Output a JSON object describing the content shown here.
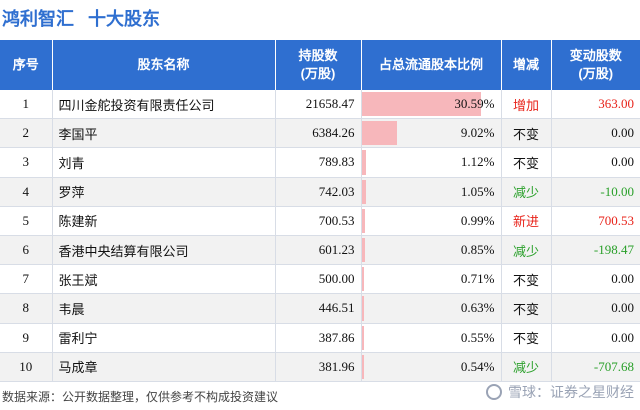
{
  "title": {
    "company": "鸿利智汇",
    "subtitle": "十大股东"
  },
  "headers": {
    "rank": "序号",
    "name": "股东名称",
    "shares_l1": "持股数",
    "shares_l2": "(万股)",
    "ratio": "占总流通股本比例",
    "change": "增减",
    "delta_l1": "变动股数",
    "delta_l2": "(万股)"
  },
  "rows": [
    {
      "rank": "1",
      "name": "四川金舵投资有限责任公司",
      "shares": "21658.47",
      "ratio": "30.59%",
      "ratio_value": 30.59,
      "change": "增加",
      "change_type": "up",
      "delta": "363.00",
      "delta_type": "up"
    },
    {
      "rank": "2",
      "name": "李国平",
      "shares": "6384.26",
      "ratio": "9.02%",
      "ratio_value": 9.02,
      "change": "不变",
      "change_type": "same",
      "delta": "0.00",
      "delta_type": "same"
    },
    {
      "rank": "3",
      "name": "刘青",
      "shares": "789.83",
      "ratio": "1.12%",
      "ratio_value": 1.12,
      "change": "不变",
      "change_type": "same",
      "delta": "0.00",
      "delta_type": "same"
    },
    {
      "rank": "4",
      "name": "罗萍",
      "shares": "742.03",
      "ratio": "1.05%",
      "ratio_value": 1.05,
      "change": "减少",
      "change_type": "down",
      "delta": "-10.00",
      "delta_type": "down"
    },
    {
      "rank": "5",
      "name": "陈建新",
      "shares": "700.53",
      "ratio": "0.99%",
      "ratio_value": 0.99,
      "change": "新进",
      "change_type": "up",
      "delta": "700.53",
      "delta_type": "up"
    },
    {
      "rank": "6",
      "name": "香港中央结算有限公司",
      "shares": "601.23",
      "ratio": "0.85%",
      "ratio_value": 0.85,
      "change": "减少",
      "change_type": "down",
      "delta": "-198.47",
      "delta_type": "down"
    },
    {
      "rank": "7",
      "name": "张王斌",
      "shares": "500.00",
      "ratio": "0.71%",
      "ratio_value": 0.71,
      "change": "不变",
      "change_type": "same",
      "delta": "0.00",
      "delta_type": "same"
    },
    {
      "rank": "8",
      "name": "韦晨",
      "shares": "446.51",
      "ratio": "0.63%",
      "ratio_value": 0.63,
      "change": "不变",
      "change_type": "same",
      "delta": "0.00",
      "delta_type": "same"
    },
    {
      "rank": "9",
      "name": "雷利宁",
      "shares": "387.86",
      "ratio": "0.55%",
      "ratio_value": 0.55,
      "change": "不变",
      "change_type": "same",
      "delta": "0.00",
      "delta_type": "same"
    },
    {
      "rank": "10",
      "name": "马成章",
      "shares": "381.96",
      "ratio": "0.54%",
      "ratio_value": 0.54,
      "change": "减少",
      "change_type": "down",
      "delta": "-707.68",
      "delta_type": "down"
    }
  ],
  "footer": {
    "source": "数据来源：公开数据整理，仅供参考不构成投资建议"
  },
  "brand": {
    "icon": "snowball-icon",
    "text": "雪球：证券之星财经"
  },
  "colors": {
    "header_bg": "#2f6fd0",
    "bar": "#f7b7bb",
    "up": "#e8231a",
    "down": "#2aa02a"
  }
}
